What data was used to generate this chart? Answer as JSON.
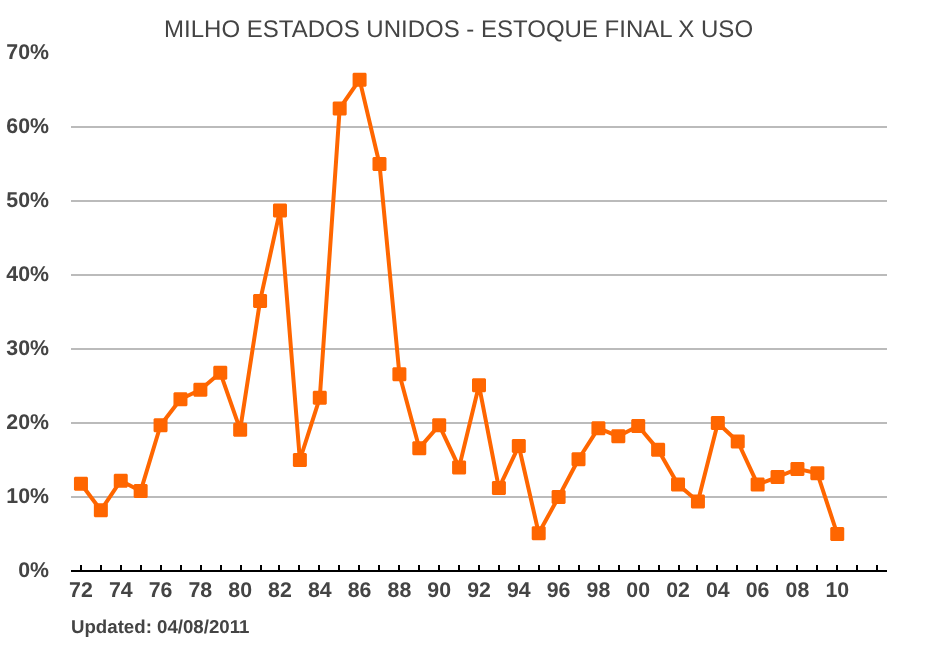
{
  "chart_data": {
    "type": "line",
    "title": "MILHO  ESTADOS  UNIDOS  -  ESTOQUE FINAL  X  USO",
    "categories": [
      "72",
      null,
      "74",
      null,
      "76",
      null,
      "78",
      null,
      "80",
      null,
      "82",
      null,
      "84",
      null,
      "86",
      null,
      "88",
      null,
      "90",
      null,
      "92",
      null,
      "94",
      null,
      "96",
      null,
      "98",
      null,
      "00",
      null,
      "02",
      null,
      "04",
      null,
      "06",
      null,
      "08",
      null,
      "10",
      null,
      null
    ],
    "series": [
      {
        "color": "#ff6600",
        "values": [
          11.8,
          8.2,
          12.2,
          10.8,
          19.7,
          23.2,
          24.5,
          26.8,
          19.1,
          36.5,
          48.7,
          15.0,
          23.4,
          62.5,
          66.4,
          55.0,
          26.6,
          16.6,
          19.7,
          14.0,
          25.1,
          11.2,
          16.9,
          5.1,
          10.0,
          15.1,
          19.3,
          18.2,
          19.6,
          16.4,
          11.7,
          9.4,
          20.0,
          17.5,
          11.7,
          12.7,
          13.8,
          13.2,
          5.0,
          null,
          null
        ]
      }
    ],
    "ylim": [
      0,
      70
    ],
    "yticks": [
      {
        "value": 0,
        "label": "0%"
      },
      {
        "value": 10,
        "label": "10%"
      },
      {
        "value": 20,
        "label": "20%"
      },
      {
        "value": 30,
        "label": "30%"
      },
      {
        "value": 40,
        "label": "40%"
      },
      {
        "value": 50,
        "label": "50%"
      },
      {
        "value": 60,
        "label": "60%"
      },
      {
        "value": 70,
        "label": "70%"
      }
    ],
    "grid": "y",
    "marker": "square",
    "line_style": "solid",
    "annotations": [
      "Updated: 04/08/2011"
    ]
  }
}
